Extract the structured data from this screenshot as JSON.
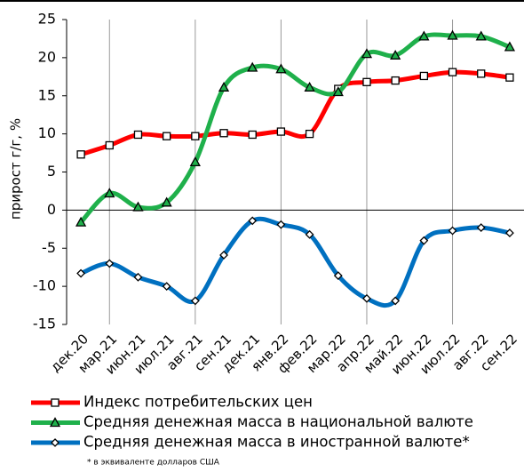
{
  "chart_data": {
    "type": "line",
    "ylabel": "прирост  г/г, %",
    "footnote": "* в эквиваленте долларов США",
    "categories": [
      "дек.20",
      "мар.21",
      "июн.21",
      "июл.21",
      "авг.21",
      "сен.21",
      "дек.21",
      "янв.22",
      "фев.22",
      "мар.22",
      "апр.22",
      "май.22",
      "июн.22",
      "июл.22",
      "авг.22",
      "сен.22"
    ],
    "series": [
      {
        "name": "Индекс потребительских цен",
        "color": "#ff0000",
        "marker": "square",
        "values": [
          7.3,
          8.5,
          9.9,
          9.7,
          9.7,
          10.1,
          9.9,
          10.3,
          10.0,
          15.9,
          16.8,
          17.0,
          17.6,
          18.1,
          17.9,
          17.4
        ]
      },
      {
        "name": "Средняя денежная масса в национальной валюте",
        "color": "#1fb04b",
        "marker": "triangle",
        "values": [
          -1.6,
          2.2,
          0.4,
          1.0,
          6.3,
          16.1,
          18.7,
          18.5,
          16.1,
          15.5,
          20.5,
          20.3,
          22.8,
          22.9,
          22.8,
          21.4
        ]
      },
      {
        "name": "Средняя денежная масса в иностранной валюте*",
        "color": "#0070c0",
        "marker": "diamond",
        "values": [
          -8.3,
          -7.0,
          -8.8,
          -10.0,
          -11.9,
          -5.9,
          -1.4,
          -1.9,
          -3.2,
          -8.6,
          -11.6,
          -11.9,
          -4.0,
          -2.7,
          -2.3,
          -3.0
        ]
      }
    ],
    "ylim": [
      -15,
      25
    ],
    "yticks": [
      -15,
      -10,
      -5,
      0,
      5,
      10,
      15,
      20,
      25
    ],
    "xgrid": true,
    "smooth": true,
    "legend": "bottom"
  }
}
